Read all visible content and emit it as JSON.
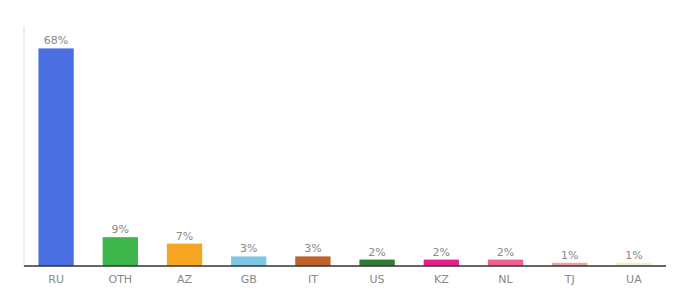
{
  "chart_data": {
    "type": "bar",
    "categories": [
      "RU",
      "OTH",
      "AZ",
      "GB",
      "IT",
      "US",
      "KZ",
      "NL",
      "TJ",
      "UA"
    ],
    "values": [
      68,
      9,
      7,
      3,
      3,
      2,
      2,
      2,
      1,
      1
    ],
    "value_labels": [
      "68%",
      "9%",
      "7%",
      "3%",
      "3%",
      "2%",
      "2%",
      "2%",
      "1%",
      "1%"
    ],
    "colors": [
      "#4a6fe3",
      "#3cb54a",
      "#f5a623",
      "#7ec8e3",
      "#c0622a",
      "#2e7d32",
      "#e91e8c",
      "#f06090",
      "#f4a0a0",
      "#f0f0c8"
    ],
    "ylim": [
      0,
      75
    ],
    "data_labels": true,
    "tick_labels": "x",
    "grid": false
  }
}
